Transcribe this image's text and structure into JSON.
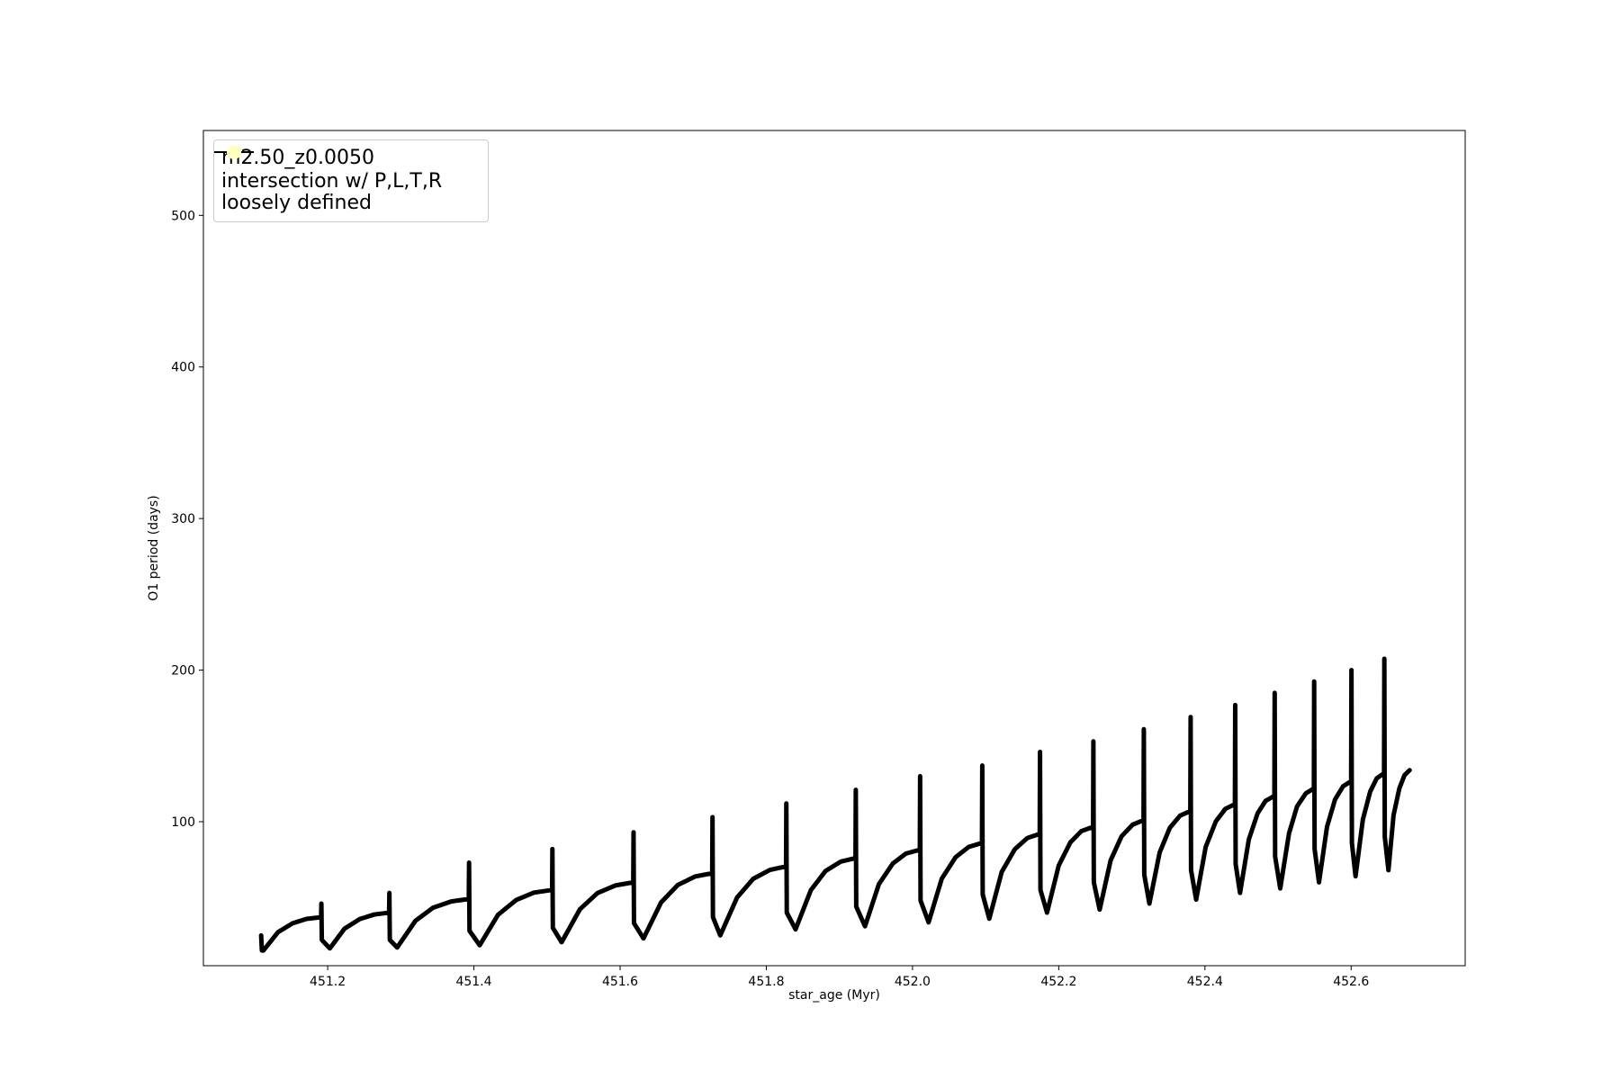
{
  "chart_data": {
    "type": "line",
    "xlabel": "star_age (Myr)",
    "ylabel": "O1 period (days)",
    "xlim": [
      451.03,
      452.756
    ],
    "ylim": [
      5,
      556
    ],
    "xticks": [
      451.2,
      451.4,
      451.6,
      451.8,
      {
        "value": 452.0,
        "label": "452.0"
      },
      452.2,
      452.4,
      452.6
    ],
    "yticks": [
      100,
      200,
      300,
      400,
      500
    ],
    "legend": "upper left",
    "series": [
      {
        "name": "m2.50_z0.0050",
        "color": "#000000",
        "x": [
          451.109,
          451.11,
          451.112,
          451.132,
          451.152,
          451.171,
          451.191,
          451.1914,
          451.192,
          451.203,
          451.223,
          451.244,
          451.264,
          451.284,
          451.2844,
          451.285,
          451.295,
          451.32,
          451.344,
          451.369,
          451.393,
          451.3934,
          451.394,
          451.408,
          451.433,
          451.458,
          451.482,
          451.507,
          451.5074,
          451.508,
          451.52,
          451.545,
          451.569,
          451.594,
          451.618,
          451.6184,
          451.619,
          451.632,
          451.656,
          451.679,
          451.703,
          451.726,
          451.7264,
          451.727,
          451.737,
          451.76,
          451.782,
          451.805,
          451.827,
          451.8274,
          451.828,
          451.84,
          451.861,
          451.881,
          451.902,
          451.922,
          451.9224,
          451.923,
          451.935,
          451.954,
          451.973,
          451.991,
          452.01,
          452.0104,
          452.011,
          452.022,
          452.04,
          452.059,
          452.077,
          452.095,
          452.0954,
          452.096,
          452.105,
          452.122,
          452.14,
          452.157,
          452.174,
          452.1744,
          452.175,
          452.184,
          452.2,
          452.216,
          452.231,
          452.247,
          452.2474,
          452.248,
          452.256,
          452.271,
          452.286,
          452.301,
          452.316,
          452.3164,
          452.317,
          452.324,
          452.338,
          452.352,
          452.366,
          452.38,
          452.3804,
          452.381,
          452.388,
          452.401,
          452.415,
          452.428,
          452.441,
          452.4414,
          452.442,
          452.448,
          452.46,
          452.472,
          452.483,
          452.495,
          452.4954,
          452.496,
          452.503,
          452.515,
          452.526,
          452.538,
          452.549,
          452.5494,
          452.55,
          452.556,
          452.567,
          452.578,
          452.589,
          452.6,
          452.6004,
          452.601,
          452.606,
          452.616,
          452.626,
          452.635,
          452.645,
          452.6454,
          452.646,
          452.651,
          452.658,
          452.666,
          452.673,
          452.68
        ],
        "values": [
          25,
          15,
          15,
          27.1,
          33,
          35.9,
          37,
          46,
          22,
          16.4,
          29.4,
          35.8,
          38.8,
          40,
          53,
          22,
          17,
          34.6,
          43.2,
          47.4,
          49,
          73,
          28,
          18.5,
          38.6,
          48.4,
          53.2,
          55,
          82,
          30,
          20.5,
          42.2,
          52.9,
          58,
          60,
          93,
          33,
          23,
          46.7,
          58.3,
          63.9,
          66,
          103,
          37,
          25,
          50,
          62.3,
          68.2,
          70.5,
          112,
          40,
          29,
          54.9,
          67.5,
          73.7,
          76,
          121,
          44,
          31,
          58.8,
          72.4,
          79,
          81.5,
          130,
          48,
          33.6,
          62.4,
          76.6,
          83.4,
          86,
          137,
          52,
          36,
          66.8,
          81.9,
          89.2,
          92,
          146,
          55,
          40,
          71.1,
          86.4,
          93.8,
          96.6,
          153,
          60,
          42,
          74.5,
          90.4,
          98,
          101,
          161,
          65,
          46,
          79.6,
          96,
          104,
          107,
          169,
          68,
          48.6,
          83.3,
          100.3,
          108.5,
          111.6,
          177,
          72,
          53,
          88.2,
          105.5,
          113.8,
          117,
          185,
          77,
          56,
          92.3,
          110.1,
          118.7,
          122,
          192.5,
          82,
          60,
          96.7,
          114.7,
          123.4,
          126.7,
          200,
          86,
          64,
          101.4,
          119.8,
          128.6,
          132,
          207.5,
          90,
          68,
          104.3,
          122.1,
          130.7,
          134
        ]
      },
      {
        "name": "intersection w/ P,L,T,R\nloosely defined",
        "color": "#ffffc0",
        "type": "scatter",
        "x": [],
        "values": []
      }
    ]
  }
}
